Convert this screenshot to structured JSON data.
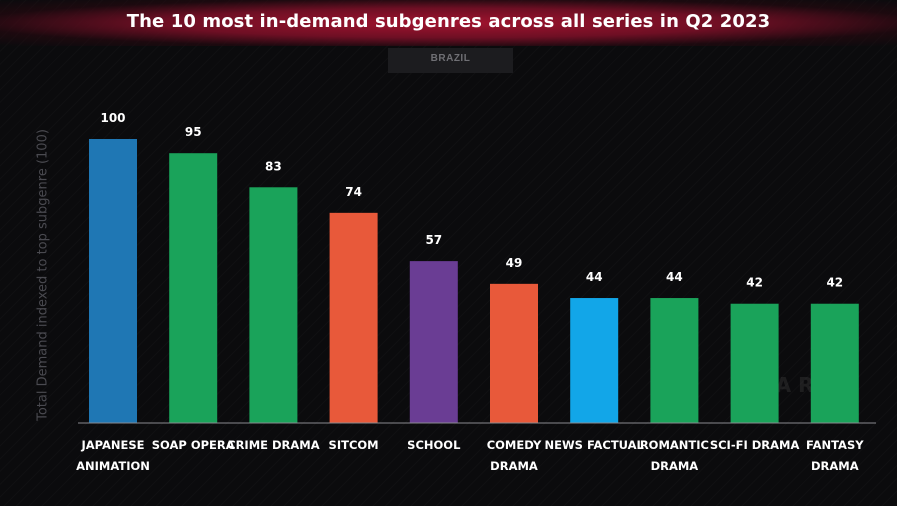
{
  "header": {
    "title": "The 10 most in-demand subgenres across all series in Q2 2023",
    "region_tab": "BRAZIL"
  },
  "chart_data": {
    "type": "bar",
    "title": "The 10 most in-demand subgenres across all series in Q2 2023",
    "xlabel": "",
    "ylabel": "Total Demand indexed to top subgenre (100)",
    "ylim": [
      0,
      100
    ],
    "grid": false,
    "categories": [
      [
        "JAPANESE",
        "ANIMATION"
      ],
      [
        "SOAP OPERA"
      ],
      [
        "CRIME DRAMA"
      ],
      [
        "SITCOM"
      ],
      [
        "SCHOOL"
      ],
      [
        "COMEDY",
        "DRAMA"
      ],
      [
        "NEWS FACTUAL"
      ],
      [
        "ROMANTIC",
        "DRAMA"
      ],
      [
        "SCI-FI DRAMA"
      ],
      [
        "FANTASY",
        "DRAMA"
      ]
    ],
    "values": [
      100,
      95,
      83,
      74,
      57,
      49,
      44,
      44,
      42,
      42
    ],
    "colors": [
      "#1f77b4",
      "#1aa35a",
      "#1aa35a",
      "#e8593a",
      "#6a3d94",
      "#e8593a",
      "#12a6e8",
      "#1aa35a",
      "#1aa35a",
      "#1aa35a"
    ]
  }
}
